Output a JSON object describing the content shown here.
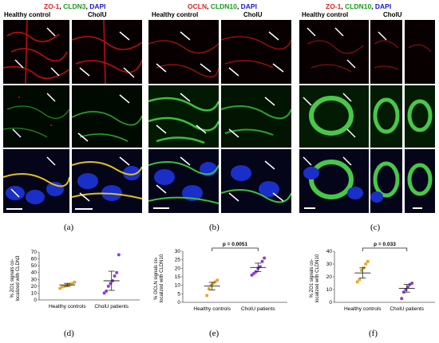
{
  "figures": [
    {
      "label": "(a)",
      "stains": [
        {
          "text": "ZO-1",
          "color": "red"
        },
        {
          "text": "CLDN3",
          "color": "green"
        },
        {
          "text": "DAPI",
          "color": "blue"
        }
      ],
      "columns": [
        "Healthy control",
        "CholU"
      ]
    },
    {
      "label": "(b)",
      "stains": [
        {
          "text": "OCLN",
          "color": "red"
        },
        {
          "text": "CLDN10",
          "color": "green"
        },
        {
          "text": "DAPI",
          "color": "blue"
        }
      ],
      "columns": [
        "Healthy control",
        "CholU"
      ]
    },
    {
      "label": "(c)",
      "stains": [
        {
          "text": "ZO-1",
          "color": "red"
        },
        {
          "text": "CLDN10",
          "color": "green"
        },
        {
          "text": "DAPI",
          "color": "blue"
        }
      ],
      "columns": [
        "Healthy control",
        "CholU"
      ]
    }
  ],
  "chart_data": [
    {
      "label": "(d)",
      "type": "scatter",
      "ylabel_line1": "% ZO1 signals co-",
      "ylabel_line2": "localized with CLDN3",
      "ylim": [
        0,
        70
      ],
      "yticks": [
        0,
        10,
        20,
        30,
        40,
        50,
        60,
        70
      ],
      "categories": [
        "Healthy controls",
        "CholU patients"
      ],
      "series": [
        {
          "color": "#e3a62b",
          "values": [
            17,
            19,
            20,
            21,
            22,
            23,
            24,
            26
          ]
        },
        {
          "color": "#8a3fd6",
          "values": [
            10,
            13,
            20,
            24,
            28,
            35,
            40,
            66
          ]
        }
      ],
      "means": [
        22,
        28
      ]
    },
    {
      "label": "(e)",
      "type": "scatter",
      "ylabel_line1": "% OCLN signals co-",
      "ylabel_line2": "localized with CLDN10",
      "ylim": [
        0,
        30
      ],
      "yticks": [
        0,
        5,
        10,
        15,
        20,
        25,
        30
      ],
      "categories": [
        "Healthy controls",
        "CholU patients"
      ],
      "pvalue": "p = 0.0051",
      "series": [
        {
          "color": "#e3a62b",
          "values": [
            4,
            8,
            10,
            11,
            12,
            13
          ]
        },
        {
          "color": "#8a3fd6",
          "values": [
            16,
            17,
            18,
            20,
            21,
            24,
            26
          ]
        }
      ],
      "means": [
        9.5,
        20.5
      ]
    },
    {
      "label": "(f)",
      "type": "scatter",
      "ylabel_line1": "% ZO1 signals co-",
      "ylabel_line2": "localized with CLDN10",
      "ylim": [
        0,
        40
      ],
      "yticks": [
        0,
        10,
        20,
        30,
        40
      ],
      "categories": [
        "Healthy controls",
        "CholU patients"
      ],
      "pvalue": "p = 0.033",
      "series": [
        {
          "color": "#e3a62b",
          "values": [
            16,
            18,
            25,
            27,
            30,
            32
          ]
        },
        {
          "color": "#8a3fd6",
          "values": [
            3,
            8,
            10,
            12,
            14,
            15
          ]
        }
      ],
      "means": [
        23,
        11
      ]
    }
  ]
}
